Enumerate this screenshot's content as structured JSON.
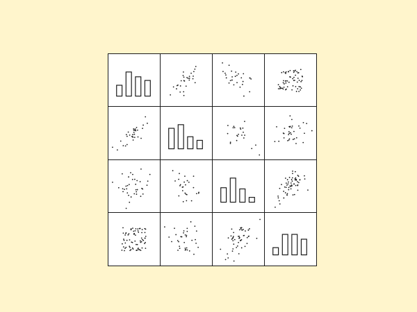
{
  "chart_data": {
    "type": "scatter",
    "subtype": "pair-plot-matrix",
    "n_vars": 4,
    "title": "",
    "colors": {
      "background": "#fff5cc",
      "panel": "#ffffff",
      "ink": "#1a1a1a"
    },
    "diagonal_histograms": [
      {
        "var": 1,
        "values": [
          0.45,
          1.0,
          0.8,
          0.65
        ]
      },
      {
        "var": 2,
        "values": [
          0.85,
          1.0,
          0.5,
          0.35
        ]
      },
      {
        "var": 3,
        "values": [
          0.6,
          1.0,
          0.55,
          0.2
        ]
      },
      {
        "var": 4,
        "values": [
          0.3,
          0.85,
          0.85,
          0.65
        ]
      }
    ],
    "scatter_panels": [
      {
        "row": 1,
        "col": 2,
        "correlation": 0.75,
        "slope": 1,
        "n": 28
      },
      {
        "row": 1,
        "col": 3,
        "correlation": -0.6,
        "slope": -1,
        "n": 28
      },
      {
        "row": 1,
        "col": 4,
        "correlation": 0.0,
        "slope": 0,
        "n": 60
      },
      {
        "row": 2,
        "col": 1,
        "correlation": 0.75,
        "slope": 1,
        "n": 32
      },
      {
        "row": 2,
        "col": 3,
        "correlation": -0.55,
        "slope": -1,
        "n": 22
      },
      {
        "row": 2,
        "col": 4,
        "correlation": 0.2,
        "slope": 0,
        "n": 34
      },
      {
        "row": 3,
        "col": 1,
        "correlation": -0.1,
        "slope": 0,
        "n": 36
      },
      {
        "row": 3,
        "col": 2,
        "correlation": -0.55,
        "slope": -1,
        "n": 26
      },
      {
        "row": 3,
        "col": 4,
        "correlation": 0.65,
        "slope": 1,
        "n": 60
      },
      {
        "row": 4,
        "col": 1,
        "correlation": 0.0,
        "slope": 0,
        "n": 70
      },
      {
        "row": 4,
        "col": 2,
        "correlation": -0.2,
        "slope": 0,
        "n": 34
      },
      {
        "row": 4,
        "col": 3,
        "correlation": 0.6,
        "slope": 1,
        "n": 50
      }
    ]
  }
}
